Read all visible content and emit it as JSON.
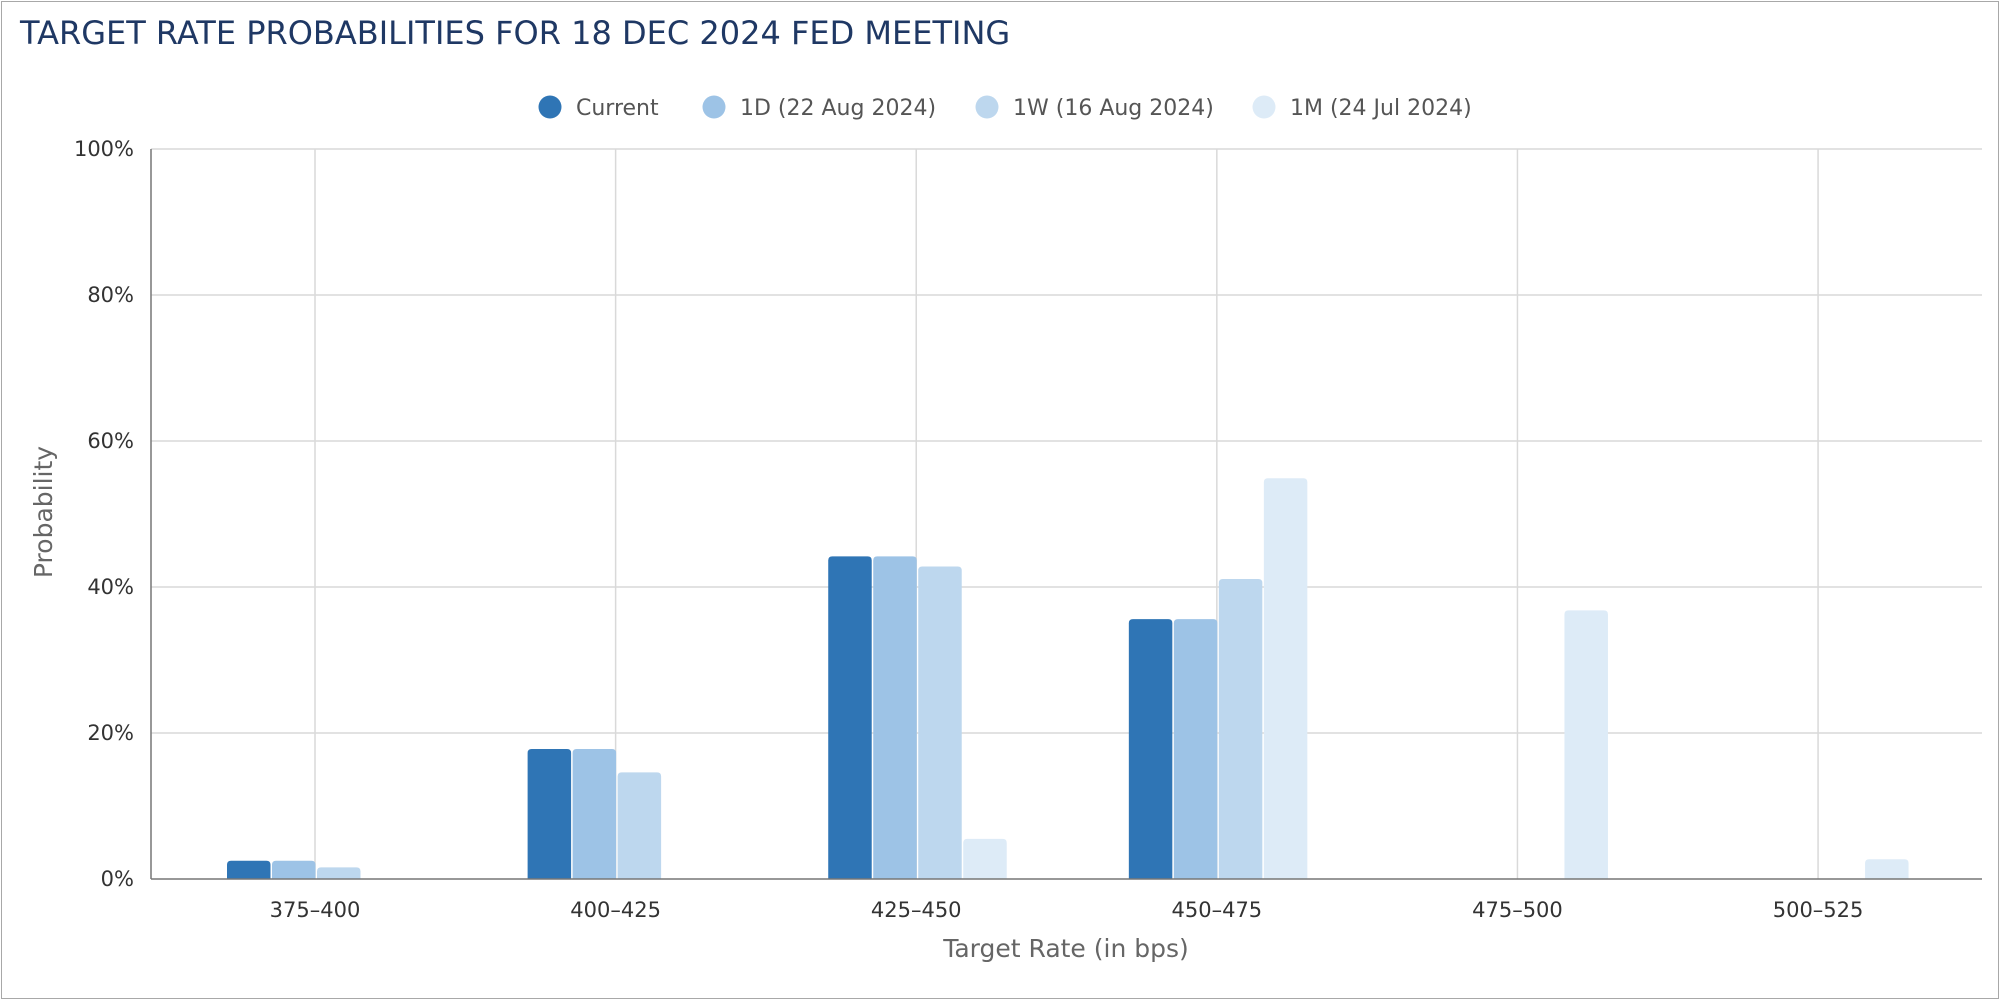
{
  "chart_data": {
    "type": "bar",
    "title": "TARGET RATE PROBABILITIES FOR 18 DEC 2024 FED MEETING",
    "xlabel": "Target Rate (in bps)",
    "ylabel": "Probability",
    "ylim": [
      0,
      100
    ],
    "y_ticks": [
      "0%",
      "20%",
      "40%",
      "60%",
      "80%",
      "100%"
    ],
    "y_tick_values": [
      0,
      20,
      40,
      60,
      80,
      100
    ],
    "categories": [
      "375–400",
      "400–425",
      "425–450",
      "450–475",
      "475–500",
      "500–525"
    ],
    "legend_position": "top-center",
    "grid": true,
    "series": [
      {
        "name": "Current",
        "color": "#2f75b5",
        "values": [
          2.5,
          17.8,
          44.2,
          35.6,
          0,
          0
        ]
      },
      {
        "name": "1D (22 Aug 2024)",
        "color": "#9dc3e6",
        "values": [
          2.5,
          17.8,
          44.2,
          35.6,
          0,
          0
        ]
      },
      {
        "name": "1W (16 Aug 2024)",
        "color": "#bdd7ee",
        "values": [
          1.6,
          14.6,
          42.8,
          41.1,
          0,
          0
        ]
      },
      {
        "name": "1M (24 Jul 2024)",
        "color": "#ddebf7",
        "values": [
          0,
          0,
          5.5,
          54.9,
          36.8,
          2.7
        ]
      }
    ]
  }
}
